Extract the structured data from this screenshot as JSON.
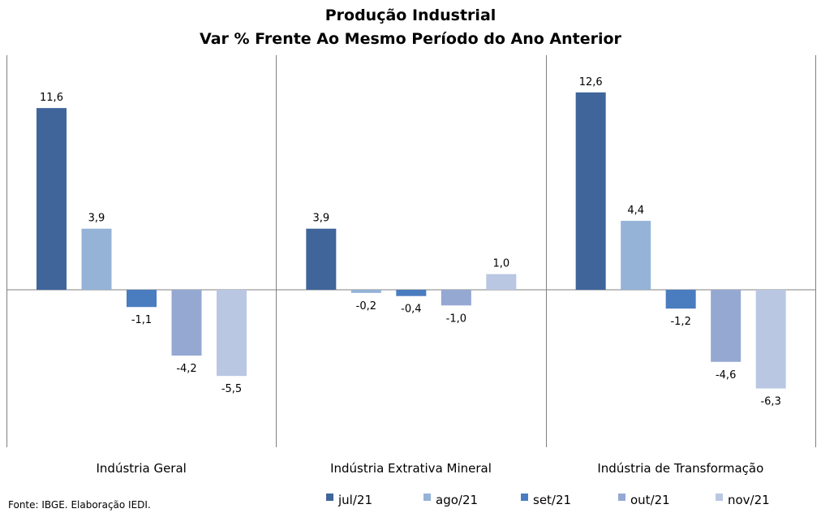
{
  "chart_data": {
    "type": "bar",
    "title": "Produção Industrial",
    "subtitle": "Var % Frente Ao Mesmo Período do Ano Anterior",
    "categories": [
      "Indústria Geral",
      "Indústria Extrativa Mineral",
      "Indústria de Transformação"
    ],
    "series": [
      {
        "name": "jul/21",
        "color": "#3f659b",
        "values": [
          11.6,
          3.9,
          12.6
        ],
        "labels": [
          "11,6",
          "3,9",
          "12,6"
        ]
      },
      {
        "name": "ago/21",
        "color": "#95b3d7",
        "values": [
          3.9,
          -0.2,
          4.4
        ],
        "labels": [
          "3,9",
          "-0,2",
          "4,4"
        ]
      },
      {
        "name": "set/21",
        "color": "#4a7cc0",
        "values": [
          -1.1,
          -0.4,
          -1.2
        ],
        "labels": [
          "-1,1",
          "-0,4",
          "-1,2"
        ]
      },
      {
        "name": "out/21",
        "color": "#95a8d2",
        "values": [
          -4.2,
          -1.0,
          -4.6
        ],
        "labels": [
          "-4,2",
          "-1,0",
          "-4,6"
        ]
      },
      {
        "name": "nov/21",
        "color": "#b9c7e3",
        "values": [
          -5.5,
          1.0,
          -6.3
        ],
        "labels": [
          "-5,5",
          "1,0",
          "-6,3"
        ]
      }
    ],
    "ylim": [
      -10,
      15
    ],
    "grid": false,
    "legend": "bottom"
  },
  "source": "Fonte: IBGE. Elaboração IEDI."
}
